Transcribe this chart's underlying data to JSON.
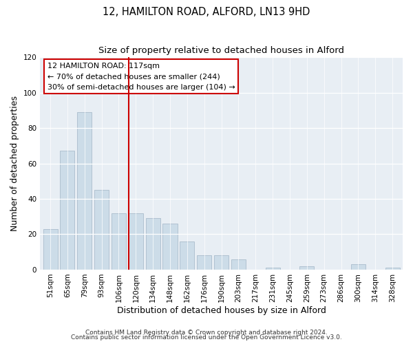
{
  "title": "12, HAMILTON ROAD, ALFORD, LN13 9HD",
  "subtitle": "Size of property relative to detached houses in Alford",
  "xlabel": "Distribution of detached houses by size in Alford",
  "ylabel": "Number of detached properties",
  "bar_labels": [
    "51sqm",
    "65sqm",
    "79sqm",
    "93sqm",
    "106sqm",
    "120sqm",
    "134sqm",
    "148sqm",
    "162sqm",
    "176sqm",
    "190sqm",
    "203sqm",
    "217sqm",
    "231sqm",
    "245sqm",
    "259sqm",
    "273sqm",
    "286sqm",
    "300sqm",
    "314sqm",
    "328sqm"
  ],
  "bar_values": [
    23,
    67,
    89,
    45,
    32,
    32,
    29,
    26,
    16,
    8,
    8,
    6,
    0,
    1,
    0,
    2,
    0,
    0,
    3,
    0,
    1
  ],
  "bar_color": "#ccdce8",
  "bar_edge_color": "#aabccc",
  "highlight_index": 5,
  "highlight_color": "#cc0000",
  "annotation_title": "12 HAMILTON ROAD: 117sqm",
  "annotation_line1": "← 70% of detached houses are smaller (244)",
  "annotation_line2": "30% of semi-detached houses are larger (104) →",
  "annotation_box_color": "#ffffff",
  "annotation_box_edge": "#cc0000",
  "ylim": [
    0,
    120
  ],
  "yticks": [
    0,
    20,
    40,
    60,
    80,
    100,
    120
  ],
  "footer_line1": "Contains HM Land Registry data © Crown copyright and database right 2024.",
  "footer_line2": "Contains public sector information licensed under the Open Government Licence v3.0.",
  "title_fontsize": 10.5,
  "subtitle_fontsize": 9.5,
  "axis_label_fontsize": 9,
  "tick_fontsize": 7.5,
  "annotation_fontsize": 8,
  "footer_fontsize": 6.5,
  "bg_color": "#e8eef4"
}
